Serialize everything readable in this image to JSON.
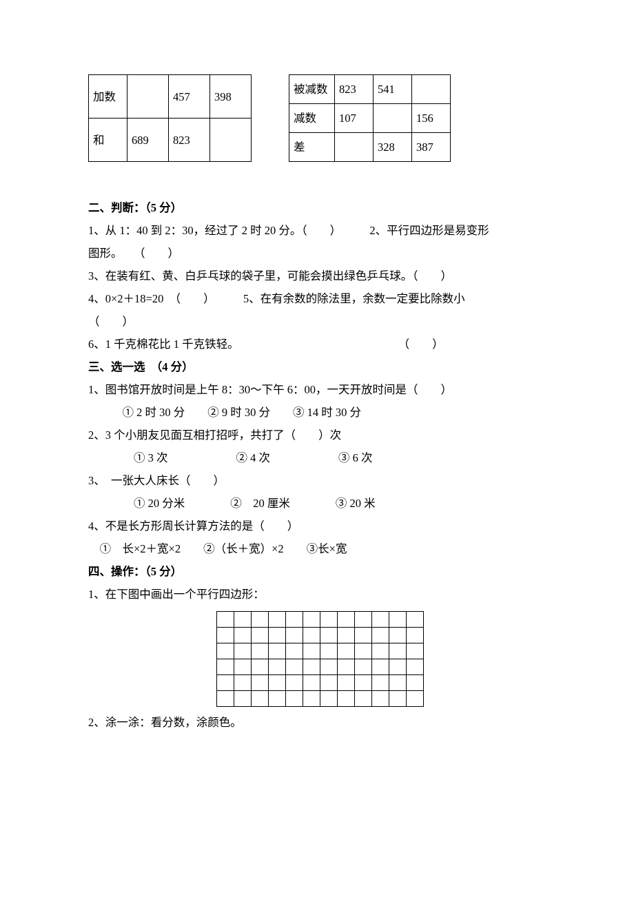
{
  "tables": {
    "addition": {
      "row1": [
        "加数",
        "",
        "457",
        "398"
      ],
      "row2": [
        "和",
        "689",
        "823",
        ""
      ]
    },
    "subtraction": {
      "row1": [
        "被减数",
        "823",
        "541",
        ""
      ],
      "row2": [
        "减数",
        "107",
        "",
        "156"
      ],
      "row3": [
        "差",
        "",
        "328",
        "387"
      ]
    }
  },
  "section2": {
    "title_a": "二、判断：",
    "title_b": "（5 分）",
    "q1a": "1、从 1：40 到 2：30，经过了 2 时 20 分。（　　）　　　2、平行四边形是易变形",
    "q1b": "图形。　　（　　）",
    "q3": "3、在装有红、黄、白乒乓球的袋子里，可能会摸出绿色乒乓球。（　　）",
    "q4": "4、0×2＋18=20　（　　）　　　5、在有余数的除法里，余数一定要比除数小",
    "q5": "（　　）",
    "q6": "6、1 千克棉花比 1 千克铁轻。　　　　　　　　　　　　　　　（　　）"
  },
  "section3": {
    "title_a": "三、选一选　",
    "title_b": "（4 分）",
    "q1": "1、图书馆开放时间是上午 8：30～下午 6：00，一天开放时间是（　　）",
    "q1opt": "　　　① 2 时 30 分　　② 9 时 30 分　　③ 14 时 30 分",
    "q2": "2、3 个小朋友见面互相打招呼，共打了（　　）次",
    "q2opt": "　　　　① 3 次　　　　　　② 4 次　　　　　　③ 6 次",
    "q3": "3、　一张大人床长（　　）",
    "q3opt": "　　　　① 20 分米　　　　②　20 厘米　　　　③ 20 米",
    "q4": "4、不是长方形周长计算方法的是（　　）",
    "q4opt": "　①　长×2＋宽×2　　②（长＋宽）×2　　③长×宽"
  },
  "section4": {
    "title_a": "四、操作：",
    "title_b": "（5 分）",
    "q1": "1、在下图中画出一个平行四边形：",
    "q2": "2、涂一涂：看分数，涂颜色。"
  },
  "grid": {
    "cols": 12,
    "rows": 6
  }
}
